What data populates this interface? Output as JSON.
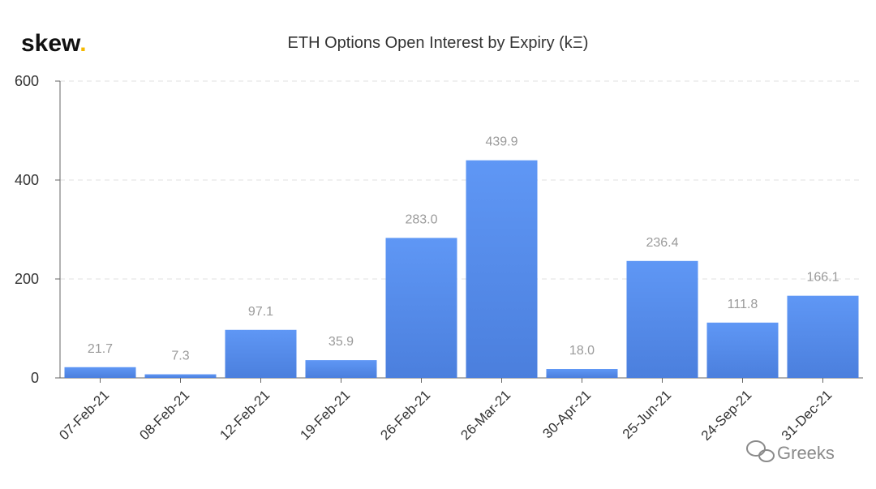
{
  "brand": {
    "logo_text": "skew",
    "logo_dot": "."
  },
  "watermark": {
    "text": "Greeks"
  },
  "colors": {
    "bar_top": "#5f97f5",
    "bar_bottom": "#4b7fdd",
    "label": "#9a9a9a",
    "accent": "#f5b900"
  },
  "chart_data": {
    "type": "bar",
    "title": "ETH Options Open Interest by Expiry (kΞ)",
    "xlabel": "",
    "ylabel": "",
    "categories": [
      "07-Feb-21",
      "08-Feb-21",
      "12-Feb-21",
      "19-Feb-21",
      "26-Feb-21",
      "26-Mar-21",
      "30-Apr-21",
      "25-Jun-21",
      "24-Sep-21",
      "31-Dec-21"
    ],
    "values": [
      21.7,
      7.3,
      97.1,
      35.9,
      283.0,
      439.9,
      18.0,
      236.4,
      111.8,
      166.1
    ],
    "data_labels": [
      "21.7",
      "7.3",
      "97.1",
      "35.9",
      "283.0",
      "439.9",
      "18.0",
      "236.4",
      "111.8",
      "166.1"
    ],
    "ylim": [
      0,
      600
    ],
    "yticks": [
      0,
      200,
      400,
      600
    ],
    "grid": true,
    "legend": "none"
  }
}
